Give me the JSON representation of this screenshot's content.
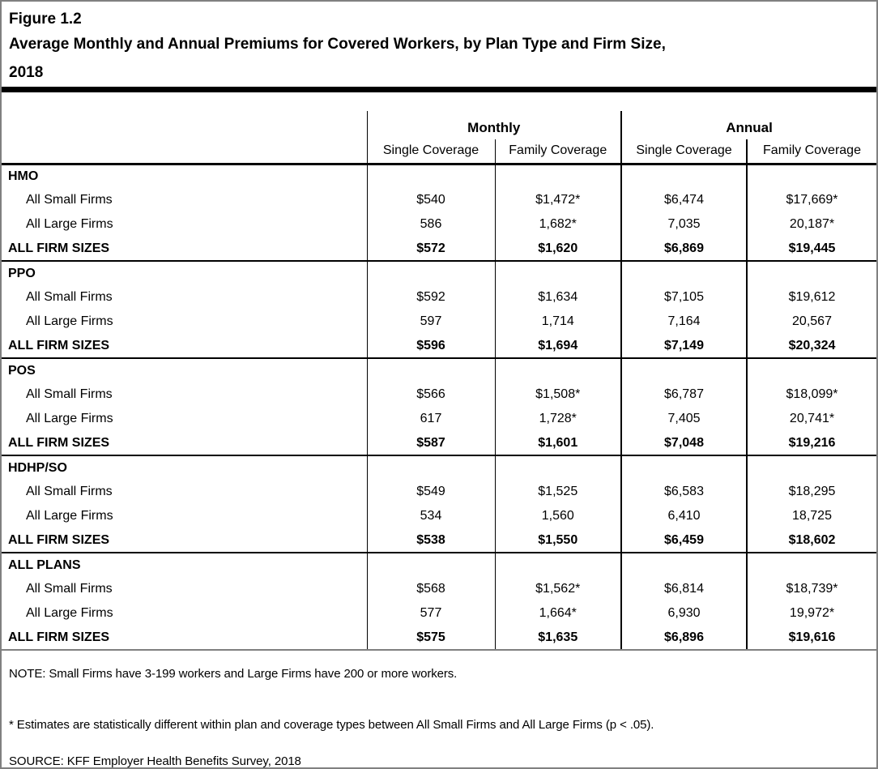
{
  "title": {
    "figure_label": "Figure 1.2",
    "lines": [
      "Average Monthly and Annual Premiums for Covered Workers, by Plan Type and Firm Size,",
      "2018"
    ]
  },
  "chart_data": {
    "type": "table",
    "title": "Average Monthly and Annual Premiums for Covered Workers, by Plan Type and Firm Size, 2018",
    "column_groups": [
      "Monthly",
      "Annual"
    ],
    "columns": [
      "Single Coverage",
      "Family Coverage",
      "Single Coverage",
      "Family Coverage"
    ],
    "sections": [
      {
        "plan": "HMO",
        "rows": [
          {
            "label": "All Small Firms",
            "values": [
              "$540",
              "$1,472*",
              "$6,474",
              "$17,669*"
            ]
          },
          {
            "label": "All Large Firms",
            "values": [
              "586",
              "1,682*",
              "7,035",
              "20,187*"
            ]
          },
          {
            "label": "ALL FIRM SIZES",
            "values": [
              "$572",
              "$1,620",
              "$6,869",
              "$19,445"
            ]
          }
        ]
      },
      {
        "plan": "PPO",
        "rows": [
          {
            "label": "All Small Firms",
            "values": [
              "$592",
              "$1,634",
              "$7,105",
              "$19,612"
            ]
          },
          {
            "label": "All Large Firms",
            "values": [
              "597",
              "1,714",
              "7,164",
              "20,567"
            ]
          },
          {
            "label": "ALL FIRM SIZES",
            "values": [
              "$596",
              "$1,694",
              "$7,149",
              "$20,324"
            ]
          }
        ]
      },
      {
        "plan": "POS",
        "rows": [
          {
            "label": "All Small Firms",
            "values": [
              "$566",
              "$1,508*",
              "$6,787",
              "$18,099*"
            ]
          },
          {
            "label": "All Large Firms",
            "values": [
              "617",
              "1,728*",
              "7,405",
              "20,741*"
            ]
          },
          {
            "label": "ALL FIRM SIZES",
            "values": [
              "$587",
              "$1,601",
              "$7,048",
              "$19,216"
            ]
          }
        ]
      },
      {
        "plan": "HDHP/SO",
        "rows": [
          {
            "label": "All Small Firms",
            "values": [
              "$549",
              "$1,525",
              "$6,583",
              "$18,295"
            ]
          },
          {
            "label": "All Large Firms",
            "values": [
              "534",
              "1,560",
              "6,410",
              "18,725"
            ]
          },
          {
            "label": "ALL FIRM SIZES",
            "values": [
              "$538",
              "$1,550",
              "$6,459",
              "$18,602"
            ]
          }
        ]
      },
      {
        "plan": "ALL PLANS",
        "rows": [
          {
            "label": "All Small Firms",
            "values": [
              "$568",
              "$1,562*",
              "$6,814",
              "$18,739*"
            ]
          },
          {
            "label": "All Large Firms",
            "values": [
              "577",
              "1,664*",
              "6,930",
              "19,972*"
            ]
          },
          {
            "label": "ALL FIRM SIZES",
            "values": [
              "$575",
              "$1,635",
              "$6,896",
              "$19,616"
            ]
          }
        ]
      }
    ]
  },
  "notes": {
    "general": "NOTE: Small Firms have 3-199 workers and Large Firms have 200 or more workers.",
    "significance": "* Estimates are statistically different within plan and coverage types between All Small Firms and All Large Firms (p < .05).",
    "source": "SOURCE: KFF Employer Health Benefits Survey, 2018"
  },
  "colors": {
    "text": "#000000",
    "background": "#ffffff",
    "outer_border": "#808080",
    "rule": "#000000"
  }
}
